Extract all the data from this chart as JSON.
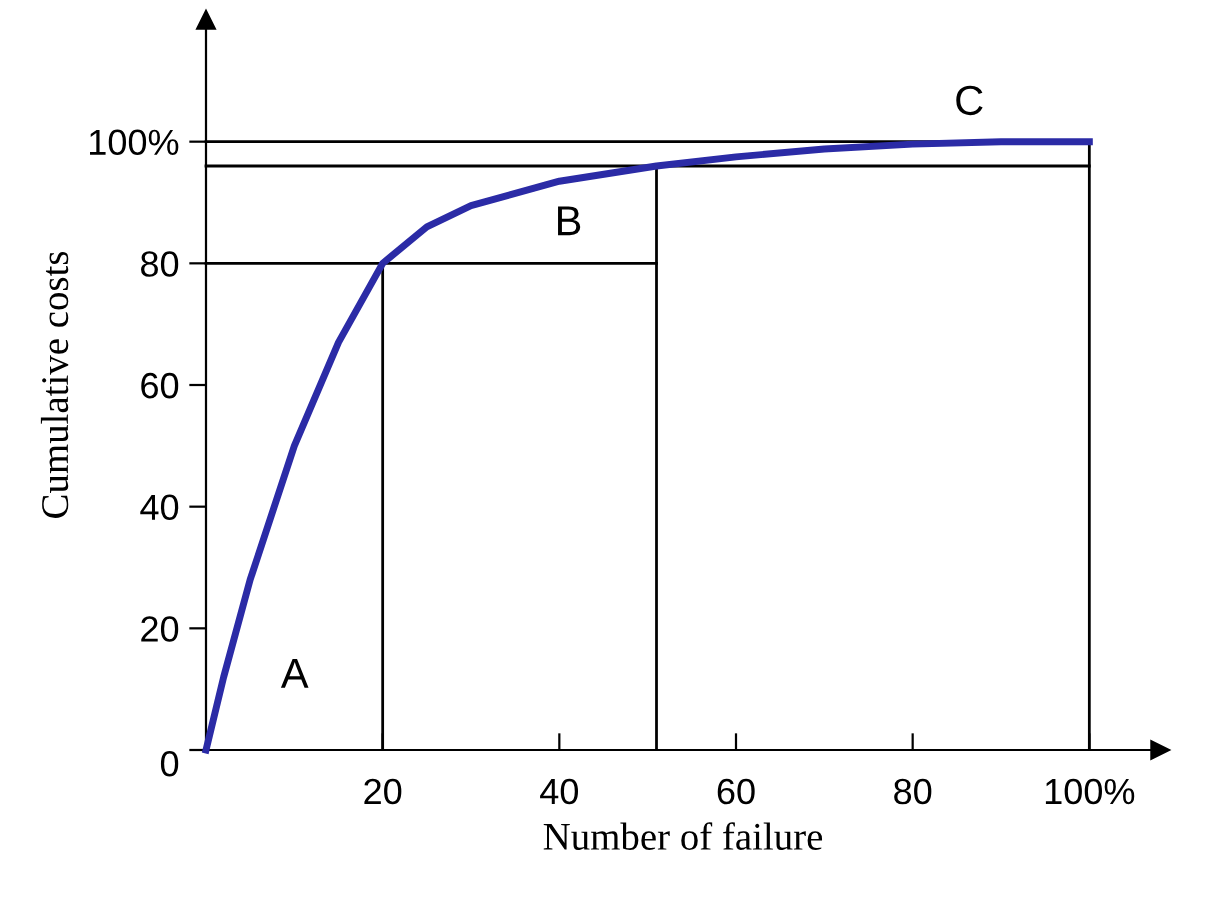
{
  "chart_data": {
    "type": "line",
    "xlabel": "Number of failure",
    "ylabel": "Cumulative costs",
    "xlim": [
      0,
      108
    ],
    "ylim": [
      0,
      120
    ],
    "xticks": [
      20,
      40,
      60,
      80,
      {
        "value": 100,
        "label": "100%"
      }
    ],
    "yticks": [
      0,
      20,
      40,
      60,
      80,
      {
        "value": 100,
        "label": "100%"
      }
    ],
    "grid": false,
    "legend": false,
    "marker": "none",
    "line_style": "solid",
    "series": [
      {
        "color": "#2b2ba6",
        "x": [
          0,
          2,
          5,
          10,
          15,
          20,
          25,
          30,
          40,
          51,
          60,
          70,
          80,
          90,
          100
        ],
        "values": [
          0,
          12,
          28,
          50,
          67,
          80,
          86,
          89.5,
          93.5,
          96,
          97.5,
          98.8,
          99.6,
          100,
          100
        ]
      },
      {
        "color": "#000000",
        "x": [
          0,
          51
        ],
        "values": [
          80,
          80
        ]
      },
      {
        "color": "#000000",
        "x": [
          0,
          100
        ],
        "values": [
          96,
          96
        ]
      },
      {
        "color": "#000000",
        "x": [
          0,
          100
        ],
        "values": [
          100,
          100
        ]
      }
    ],
    "ref_lines": [
      {
        "axis": "x",
        "value": 20,
        "color": "#000000"
      },
      {
        "axis": "x",
        "value": 51,
        "color": "#000000"
      },
      {
        "axis": "x",
        "value": 100,
        "color": "#000000"
      }
    ],
    "annotations": [
      "A",
      "B",
      "C"
    ]
  }
}
